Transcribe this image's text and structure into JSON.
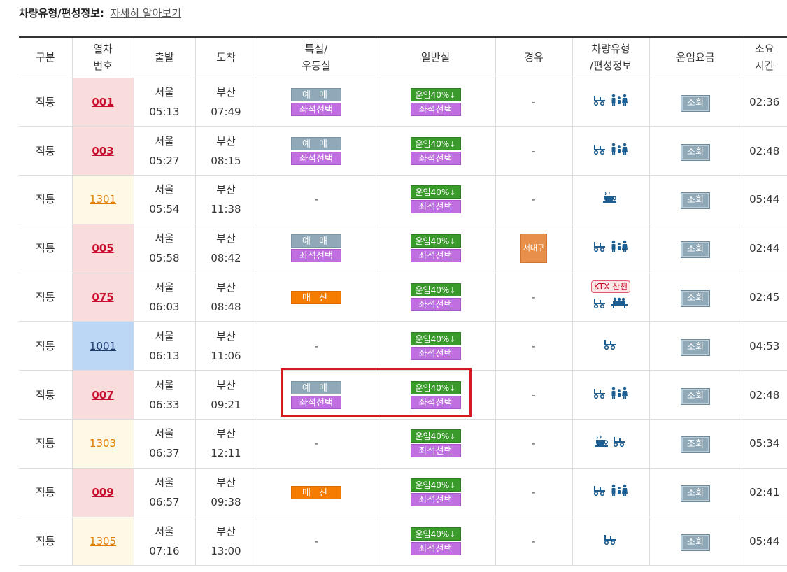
{
  "info": {
    "label": "차량유형/편성정보:",
    "link": "자세히 알아보기"
  },
  "headers": {
    "category": "구분",
    "train_no_1": "열차",
    "train_no_2": "번호",
    "depart": "출발",
    "arrive": "도착",
    "special_1": "특실/",
    "special_2": "우등실",
    "general": "일반실",
    "via": "경유",
    "cartype_1": "차량유형",
    "cartype_2": "/편성정보",
    "fare": "운임요금",
    "duration_1": "소요",
    "duration_2": "시간"
  },
  "labels": {
    "reserve": "예 매",
    "seat_select": "좌석선택",
    "sold_out": "매 진",
    "discount": "운임40%",
    "discount_arrow": "↓",
    "fare_btn": "조회",
    "dash": "-",
    "ktx_badge": "KTX-산천"
  },
  "colors": {
    "ktx_row_bg": "#f9dcdc",
    "mugunghwa_row_bg": "#fdf9e6",
    "itx_row_bg": "#bcd6f6",
    "reserve_btn": "#8fa9b8",
    "seat_btn": "#c06fe0",
    "soldout_btn": "#f57c00",
    "discount_btn": "#3a9a2c",
    "highlight": "#d71920"
  },
  "rows": [
    {
      "type": "직통",
      "train_no": "001",
      "kind": "ktx",
      "dep_station": "서울",
      "dep_time": "05:13",
      "arr_station": "부산",
      "arr_time": "07:49",
      "special": "reserve",
      "via": "-",
      "icons": [
        "wheelchair-icon",
        "family-icon"
      ],
      "duration": "02:36"
    },
    {
      "type": "직통",
      "train_no": "003",
      "kind": "ktx",
      "dep_station": "서울",
      "dep_time": "05:27",
      "arr_station": "부산",
      "arr_time": "08:15",
      "special": "reserve",
      "via": "-",
      "icons": [
        "wheelchair-icon",
        "family-icon"
      ],
      "duration": "02:48"
    },
    {
      "type": "직통",
      "train_no": "1301",
      "kind": "mug",
      "dep_station": "서울",
      "dep_time": "05:54",
      "arr_station": "부산",
      "arr_time": "11:38",
      "special": "none",
      "via": "-",
      "icons": [
        "cafe-icon"
      ],
      "duration": "05:44"
    },
    {
      "type": "직통",
      "train_no": "005",
      "kind": "ktx",
      "dep_station": "서울",
      "dep_time": "05:58",
      "arr_station": "부산",
      "arr_time": "08:42",
      "special": "reserve",
      "via": "서대구",
      "icons": [
        "wheelchair-icon",
        "family-icon"
      ],
      "duration": "02:44"
    },
    {
      "type": "직통",
      "train_no": "075",
      "kind": "ktx",
      "dep_station": "서울",
      "dep_time": "06:03",
      "arr_station": "부산",
      "arr_time": "08:48",
      "special": "soldout",
      "via": "-",
      "icons": [
        "ktx-sancheon-badge",
        "wheelchair-icon",
        "meeting-room-icon"
      ],
      "duration": "02:45"
    },
    {
      "type": "직통",
      "train_no": "1001",
      "kind": "itx",
      "dep_station": "서울",
      "dep_time": "06:13",
      "arr_station": "부산",
      "arr_time": "11:06",
      "special": "none",
      "via": "-",
      "icons": [
        "wheelchair-icon"
      ],
      "duration": "04:53"
    },
    {
      "type": "직통",
      "train_no": "007",
      "kind": "ktx",
      "dep_station": "서울",
      "dep_time": "06:33",
      "arr_station": "부산",
      "arr_time": "09:21",
      "special": "reserve",
      "via": "-",
      "icons": [
        "wheelchair-icon",
        "family-icon"
      ],
      "duration": "02:48"
    },
    {
      "type": "직통",
      "train_no": "1303",
      "kind": "mug",
      "dep_station": "서울",
      "dep_time": "06:37",
      "arr_station": "부산",
      "arr_time": "12:11",
      "special": "none",
      "via": "-",
      "icons": [
        "cafe-icon",
        "wheelchair-icon"
      ],
      "duration": "05:34"
    },
    {
      "type": "직통",
      "train_no": "009",
      "kind": "ktx",
      "dep_station": "서울",
      "dep_time": "06:57",
      "arr_station": "부산",
      "arr_time": "09:38",
      "special": "soldout",
      "via": "-",
      "icons": [
        "wheelchair-icon",
        "family-icon"
      ],
      "duration": "02:41"
    },
    {
      "type": "직통",
      "train_no": "1305",
      "kind": "mug",
      "dep_station": "서울",
      "dep_time": "07:16",
      "arr_station": "부산",
      "arr_time": "13:00",
      "special": "none",
      "via": "-",
      "icons": [
        "wheelchair-icon"
      ],
      "duration": "05:44"
    }
  ]
}
